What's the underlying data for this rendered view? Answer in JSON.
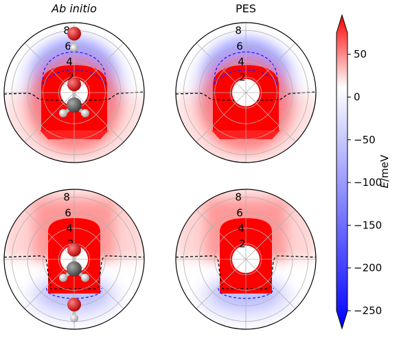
{
  "chart_data": {
    "type": "heatmap",
    "projection": "polar",
    "panels": [
      {
        "title": "Ab initio",
        "title_style": "italic",
        "radial_ticks": [
          "2",
          "4",
          "6",
          "8"
        ],
        "molecule": "top",
        "variant": "upper"
      },
      {
        "title": "PES",
        "title_style": "normal",
        "radial_ticks": [
          "2",
          "4",
          "6",
          "8"
        ],
        "molecule": "none",
        "variant": "upper"
      },
      {
        "title": "",
        "title_style": "normal",
        "radial_ticks": [
          "2",
          "4",
          "6",
          "8"
        ],
        "molecule": "bottom",
        "variant": "lower"
      },
      {
        "title": "",
        "title_style": "normal",
        "radial_ticks": [
          "2",
          "4",
          "6",
          "8"
        ],
        "molecule": "none",
        "variant": "lower"
      }
    ],
    "rlim": [
      0,
      9
    ],
    "colorbar": {
      "label_var": "E",
      "label_unit": "/meV",
      "ticks": [
        "50",
        "0",
        "−50",
        "−100",
        "−150",
        "−200",
        "−250"
      ],
      "tick_values": [
        50,
        0,
        -50,
        -100,
        -150,
        -200,
        -250
      ],
      "range": [
        -250,
        75
      ],
      "colormap": "bwr",
      "extend": "both"
    },
    "contours": [
      {
        "level": 0,
        "style": "dashed",
        "color": "#000000"
      },
      {
        "level": -50,
        "style": "dashed",
        "color": "#1a1aff"
      }
    ],
    "colors": {
      "positive": "#ff0000",
      "negative": "#0000ff",
      "zero": "#ffffff",
      "grid": "#b0b0b0",
      "carbon": "#555555",
      "oxygen": "#e00000",
      "hydrogen": "#dcdcdc"
    }
  }
}
